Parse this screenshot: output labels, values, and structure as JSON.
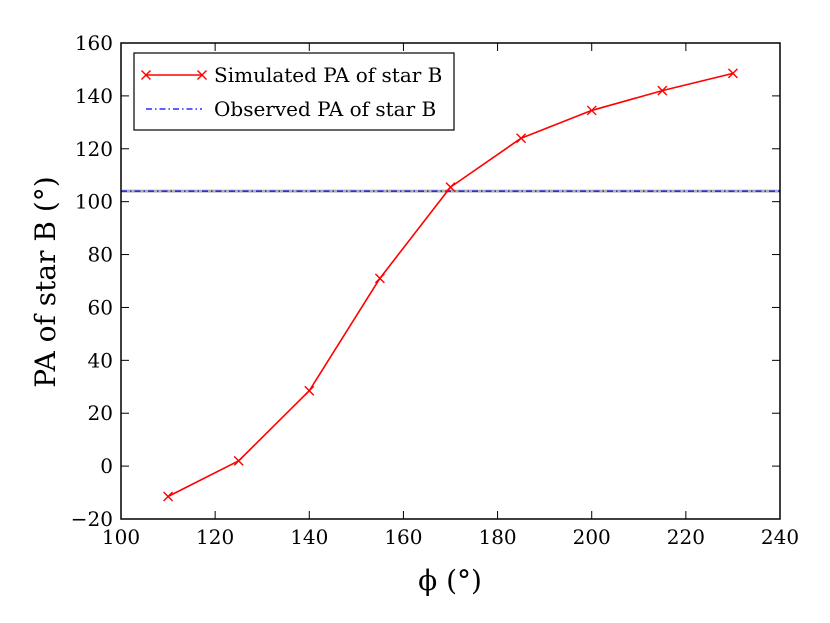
{
  "chart_data": {
    "type": "line",
    "title": "",
    "xlabel": "ϕ (°)",
    "ylabel": "PA of star B (°)",
    "xlim": [
      100,
      240
    ],
    "ylim": [
      -20,
      160
    ],
    "xticks": [
      100,
      120,
      140,
      160,
      180,
      200,
      220,
      240
    ],
    "yticks": [
      -20,
      0,
      20,
      40,
      60,
      80,
      100,
      120,
      140,
      160
    ],
    "xtick_labels": [
      "100",
      "120",
      "140",
      "160",
      "180",
      "200",
      "220",
      "240"
    ],
    "ytick_labels": [
      "−20",
      "0",
      "20",
      "40",
      "60",
      "80",
      "100",
      "120",
      "140",
      "160"
    ],
    "grid": false,
    "legend_position": "top-left",
    "series": [
      {
        "name": "Simulated PA of star B",
        "color": "#ff0000",
        "line_style": "solid",
        "marker": "x",
        "x": [
          110,
          125,
          140,
          155,
          170,
          185,
          200,
          215,
          230
        ],
        "y": [
          -11.5,
          2,
          28.5,
          71,
          105.5,
          124,
          134.5,
          142,
          148.5
        ]
      },
      {
        "name": "Observed PA of star B",
        "color": "#0000ff",
        "line_style": "dashdot",
        "marker": "none",
        "y_constant": 104
      }
    ]
  }
}
